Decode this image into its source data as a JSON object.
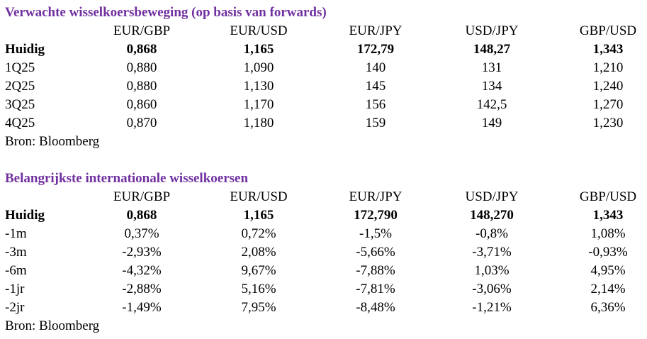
{
  "sections": [
    {
      "title": "Verwachte wisselkoersbeweging (op basis van forwards)",
      "columns": [
        "EUR/GBP",
        "EUR/USD",
        "EUR/JPY",
        "USD/JPY",
        "GBP/USD"
      ],
      "rows": [
        {
          "label": "Huidig",
          "cells": [
            "0,868",
            "1,165",
            "172,79",
            "148,27",
            "1,343"
          ]
        },
        {
          "label": "1Q25",
          "cells": [
            "0,880",
            "1,090",
            "140",
            "131",
            "1,210"
          ]
        },
        {
          "label": "2Q25",
          "cells": [
            "0,880",
            "1,130",
            "145",
            "134",
            "1,240"
          ]
        },
        {
          "label": "3Q25",
          "cells": [
            "0,860",
            "1,170",
            "156",
            "142,5",
            "1,270"
          ]
        },
        {
          "label": "4Q25",
          "cells": [
            "0,870",
            "1,180",
            "159",
            "149",
            "1,230"
          ]
        }
      ],
      "source": "Bron: Bloomberg"
    },
    {
      "title": "Belangrijkste internationale wisselkoersen",
      "columns": [
        "EUR/GBP",
        "EUR/USD",
        "EUR/JPY",
        "USD/JPY",
        "GBP/USD"
      ],
      "rows": [
        {
          "label": "Huidig",
          "cells": [
            "0,868",
            "1,165",
            "172,790",
            "148,270",
            "1,343"
          ]
        },
        {
          "label": "-1m",
          "cells": [
            "0,37%",
            "0,72%",
            "-1,5%",
            "-0,8%",
            "1,08%"
          ]
        },
        {
          "label": "-3m",
          "cells": [
            "-2,93%",
            "2,08%",
            "-5,66%",
            "-3,71%",
            "-0,93%"
          ]
        },
        {
          "label": "-6m",
          "cells": [
            "-4,32%",
            "9,67%",
            "-7,88%",
            "1,03%",
            "4,95%"
          ]
        },
        {
          "label": "-1jr",
          "cells": [
            "-2,88%",
            "5,16%",
            "-7,81%",
            "-3,06%",
            "2,14%"
          ]
        },
        {
          "label": "-2jr",
          "cells": [
            "-1,49%",
            "7,95%",
            "-8,48%",
            "-1,21%",
            "6,36%"
          ]
        }
      ],
      "source": "Bron: Bloomberg"
    }
  ]
}
